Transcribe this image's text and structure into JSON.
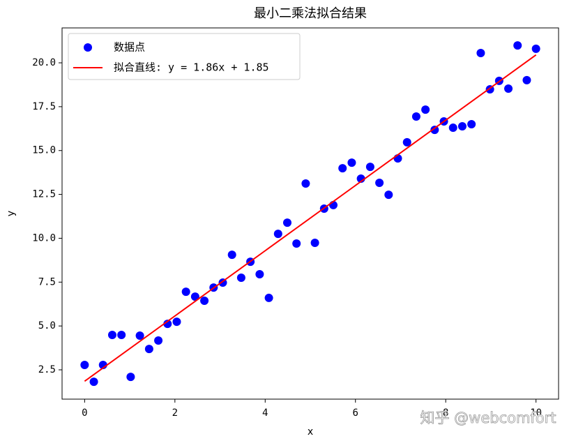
{
  "chart_data": {
    "type": "scatter",
    "title": "最小二乘法拟合结果",
    "x_label": "x",
    "y_label": "y",
    "x": [
      0,
      0.204,
      0.408,
      0.612,
      0.816,
      1.02,
      1.224,
      1.429,
      1.633,
      1.837,
      2.041,
      2.245,
      2.449,
      2.653,
      2.857,
      3.061,
      3.265,
      3.469,
      3.673,
      3.878,
      4.082,
      4.286,
      4.49,
      4.694,
      4.898,
      5.102,
      5.306,
      5.51,
      5.714,
      5.918,
      6.122,
      6.327,
      6.531,
      6.735,
      6.939,
      7.143,
      7.347,
      7.551,
      7.755,
      7.959,
      8.163,
      8.367,
      8.571,
      8.776,
      8.98,
      9.184,
      9.388,
      9.592,
      9.796,
      10
    ],
    "series": [
      {
        "name": "数据点",
        "type": "scatter",
        "color": "#0000ff",
        "values": [
          2.78,
          1.82,
          2.78,
          4.49,
          4.49,
          2.1,
          4.45,
          3.69,
          4.17,
          5.12,
          5.24,
          6.95,
          6.67,
          6.44,
          7.19,
          7.47,
          9.06,
          7.75,
          8.66,
          7.95,
          6.6,
          10.25,
          10.89,
          9.7,
          13.12,
          9.74,
          11.69,
          11.89,
          13.99,
          14.31,
          13.4,
          14.07,
          13.16,
          12.48,
          14.55,
          15.47,
          16.94,
          17.33,
          16.18,
          16.66,
          16.3,
          16.38,
          16.5,
          20.56,
          18.49,
          18.97,
          18.53,
          20.99,
          19.01,
          20.8
        ]
      },
      {
        "name": "拟合直线: y = 1.86x + 1.85",
        "type": "line",
        "color": "#ff0000",
        "x": [
          0,
          10
        ],
        "values": [
          1.85,
          20.45
        ]
      }
    ],
    "xlim": [
      -0.5,
      10.5
    ],
    "ylim": [
      0.83,
      21.99
    ],
    "xticks": [
      0,
      2,
      4,
      6,
      8,
      10
    ],
    "yticks": [
      2.5,
      {
        "value": 5,
        "label": "5.0"
      },
      7.5,
      {
        "value": 10,
        "label": "10.0"
      },
      12.5,
      {
        "value": 15,
        "label": "15.0"
      },
      17.5,
      {
        "value": 20,
        "label": "20.0"
      }
    ],
    "legend": "upper left",
    "grid": false,
    "watermark": "知乎 @webcomfort"
  }
}
